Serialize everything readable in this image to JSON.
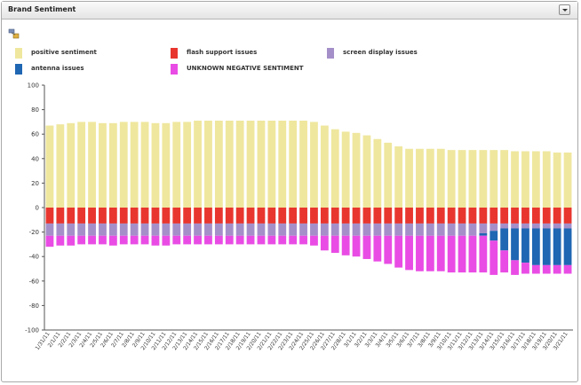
{
  "panel": {
    "title": "Brand Sentiment"
  },
  "toolbar": {
    "icon": "chart-tool-icon"
  },
  "colors": {
    "positive": "#efe79e",
    "flash": "#e8362e",
    "screen": "#a58fc9",
    "antenna": "#1f66b3",
    "unknown": "#e94ce4"
  },
  "legend": [
    {
      "key": "positive",
      "label": "positive sentiment"
    },
    {
      "key": "flash",
      "label": "flash support issues"
    },
    {
      "key": "screen",
      "label": "screen display issues"
    },
    {
      "key": "antenna",
      "label": "antenna issues"
    },
    {
      "key": "unknown",
      "label": "UNKNOWN NEGATIVE SENTIMENT"
    }
  ],
  "chart_data": {
    "type": "bar",
    "stacked": true,
    "ylim": [
      -100,
      100
    ],
    "yticks": [
      100,
      80,
      60,
      40,
      20,
      0,
      -20,
      -40,
      -60,
      -80,
      -100
    ],
    "grid": false,
    "legend_position": "top",
    "categories": [
      "1/31/11",
      "2/1/11",
      "2/2/11",
      "2/3/11",
      "2/4/11",
      "2/5/11",
      "2/6/11",
      "2/7/11",
      "2/8/11",
      "2/9/11",
      "2/10/11",
      "2/11/11",
      "2/12/11",
      "2/13/11",
      "2/14/11",
      "2/15/11",
      "2/16/11",
      "2/17/11",
      "2/18/11",
      "2/19/11",
      "2/20/11",
      "2/21/11",
      "2/22/11",
      "2/23/11",
      "2/24/11",
      "2/25/11",
      "2/26/11",
      "2/27/11",
      "2/28/11",
      "3/1/11",
      "3/2/11",
      "3/3/11",
      "3/4/11",
      "3/5/11",
      "3/6/11",
      "3/7/11",
      "3/8/11",
      "3/9/11",
      "3/10/11",
      "3/11/11",
      "3/12/11",
      "3/13/11",
      "3/14/11",
      "3/15/11",
      "3/16/11",
      "3/17/11",
      "3/18/11",
      "3/19/11",
      "3/20/11",
      "3/21/11"
    ],
    "series": [
      {
        "name": "positive sentiment",
        "key": "positive",
        "values": [
          67,
          68,
          69,
          70,
          70,
          69,
          69,
          70,
          70,
          70,
          69,
          69,
          70,
          70,
          71,
          71,
          71,
          71,
          71,
          71,
          71,
          71,
          71,
          71,
          71,
          70,
          67,
          64,
          62,
          61,
          59,
          56,
          53,
          50,
          48,
          48,
          48,
          48,
          47,
          47,
          47,
          47,
          47,
          47,
          46,
          46,
          46,
          46,
          45,
          45
        ]
      },
      {
        "name": "flash support issues",
        "key": "flash",
        "values": [
          -13,
          -13,
          -13,
          -13,
          -13,
          -13,
          -13,
          -13,
          -13,
          -13,
          -13,
          -13,
          -13,
          -13,
          -13,
          -13,
          -13,
          -13,
          -13,
          -13,
          -13,
          -13,
          -13,
          -13,
          -13,
          -13,
          -13,
          -13,
          -13,
          -13,
          -13,
          -13,
          -13,
          -13,
          -13,
          -13,
          -13,
          -13,
          -13,
          -13,
          -13,
          -13,
          -13,
          -13,
          -13,
          -13,
          -13,
          -13,
          -13,
          -13
        ]
      },
      {
        "name": "screen display issues",
        "key": "screen",
        "values": [
          -10,
          -10,
          -10,
          -10,
          -10,
          -10,
          -10,
          -10,
          -10,
          -10,
          -10,
          -10,
          -10,
          -10,
          -10,
          -10,
          -10,
          -10,
          -10,
          -10,
          -10,
          -10,
          -10,
          -10,
          -10,
          -10,
          -10,
          -10,
          -10,
          -10,
          -10,
          -10,
          -10,
          -10,
          -10,
          -10,
          -10,
          -10,
          -10,
          -10,
          -10,
          -8,
          -6,
          -4,
          -4,
          -4,
          -4,
          -4,
          -4,
          -4
        ]
      },
      {
        "name": "antenna issues",
        "key": "antenna",
        "values": [
          0,
          0,
          0,
          0,
          0,
          0,
          0,
          0,
          0,
          0,
          0,
          0,
          0,
          0,
          0,
          0,
          0,
          0,
          0,
          0,
          0,
          0,
          0,
          0,
          0,
          0,
          0,
          0,
          0,
          0,
          0,
          0,
          0,
          0,
          0,
          0,
          0,
          0,
          0,
          0,
          0,
          -2,
          -8,
          -18,
          -26,
          -28,
          -30,
          -30,
          -30,
          -30
        ]
      },
      {
        "name": "UNKNOWN NEGATIVE SENTIMENT",
        "key": "unknown",
        "values": [
          -9,
          -8,
          -8,
          -7,
          -7,
          -7,
          -8,
          -7,
          -7,
          -7,
          -8,
          -8,
          -7,
          -7,
          -7,
          -7,
          -7,
          -7,
          -7,
          -7,
          -7,
          -7,
          -7,
          -7,
          -7,
          -8,
          -12,
          -14,
          -16,
          -17,
          -19,
          -21,
          -23,
          -26,
          -28,
          -29,
          -29,
          -29,
          -30,
          -30,
          -30,
          -30,
          -28,
          -18,
          -12,
          -9,
          -7,
          -7,
          -7,
          -7
        ]
      }
    ]
  }
}
